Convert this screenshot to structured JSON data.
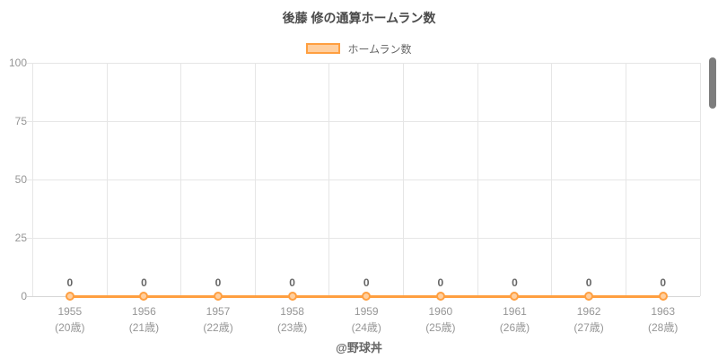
{
  "title": "後藤 修の通算ホームラン数",
  "legend": {
    "label": "ホームラン数"
  },
  "footer": "@野球丼",
  "colors": {
    "line": "#ff9f40",
    "point_fill": "#ffcf9f",
    "grid": "#e6e6e6",
    "zero_line": "#d6d6d6",
    "tick_text": "#969696",
    "data_label_text": "#666666",
    "title_text": "#4a4a4a",
    "scrollbar": "#7d7d7d"
  },
  "chart_data": {
    "type": "line",
    "title": "後藤 修の通算ホームラン数",
    "categories": [
      "1955",
      "1956",
      "1957",
      "1958",
      "1959",
      "1960",
      "1961",
      "1962",
      "1963"
    ],
    "category_sublabels": [
      "(20歳)",
      "(21歳)",
      "(22歳)",
      "(23歳)",
      "(24歳)",
      "(25歳)",
      "(26歳)",
      "(27歳)",
      "(28歳)"
    ],
    "series": [
      {
        "name": "ホームラン数",
        "values": [
          0,
          0,
          0,
          0,
          0,
          0,
          0,
          0,
          0
        ]
      }
    ],
    "data_labels": [
      "0",
      "0",
      "0",
      "0",
      "0",
      "0",
      "0",
      "0",
      "0"
    ],
    "xlabel": "",
    "ylabel": "",
    "ylim": [
      0,
      100
    ],
    "yticks": [
      0,
      25,
      50,
      75,
      100
    ],
    "grid": true,
    "grid_offset": true,
    "legend_position": "top"
  }
}
